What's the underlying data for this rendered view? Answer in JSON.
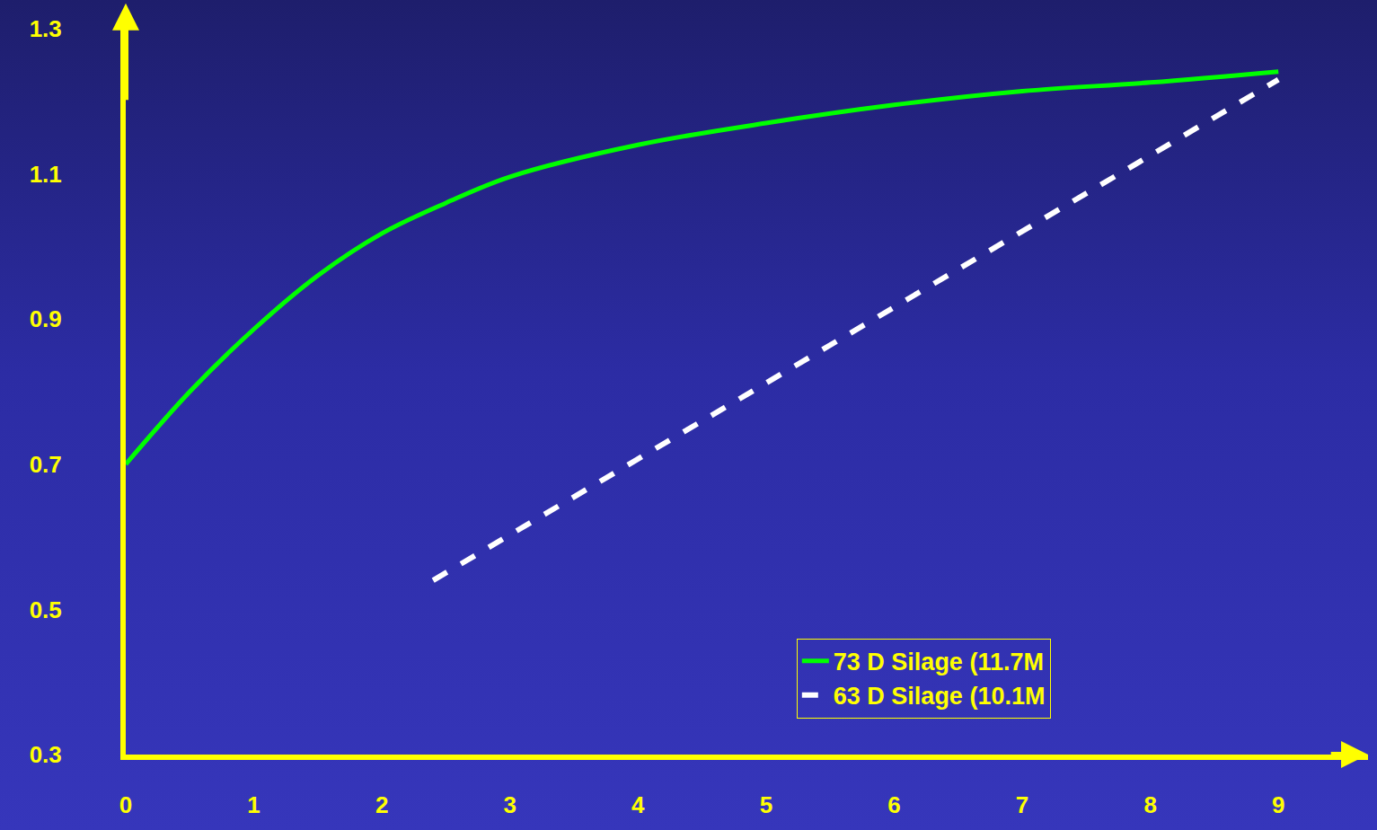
{
  "chart_data": {
    "type": "line",
    "series": [
      {
        "name": "73 D Silage (11.7M",
        "color": "#00ff00",
        "line_style": "solid",
        "x": [
          0,
          0.5,
          1,
          1.5,
          2,
          2.5,
          3,
          4,
          5,
          6,
          7,
          8,
          9
        ],
        "values": [
          0.7,
          0.8,
          0.886,
          0.96,
          1.018,
          1.06,
          1.096,
          1.14,
          1.17,
          1.195,
          1.214,
          1.226,
          1.241
        ]
      },
      {
        "name": "63 D Silage (10.1M",
        "color": "#ffffff",
        "line_style": "dashed",
        "x": [
          2.4,
          9
        ],
        "values": [
          0.54,
          1.23
        ]
      }
    ],
    "xlim": [
      0,
      9.7
    ],
    "xticks": [
      0,
      1,
      2,
      3,
      4,
      5,
      6,
      7,
      8,
      9
    ],
    "ylim": [
      0.3,
      1.3
    ],
    "yticks": [
      0.3,
      0.5,
      0.7,
      0.9,
      1.1,
      1.3
    ],
    "grid": false,
    "legend": "bottom right"
  }
}
